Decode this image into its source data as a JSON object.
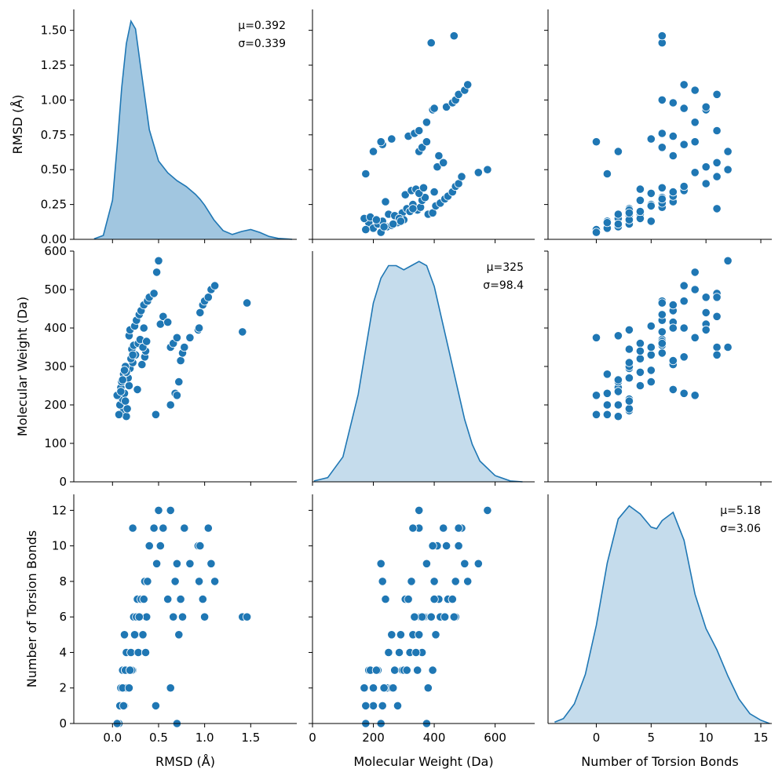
{
  "chart_data": {
    "type": "scatter",
    "title": "",
    "variables": [
      "RMSD (Å)",
      "Molecular Weight (Da)",
      "Number of Torsion Bonds"
    ],
    "colors": {
      "point": "#1f77b4",
      "point_edge": "#ffffff",
      "kde_fill": "#1f77b4",
      "kde_line": "#1f77b4",
      "axis": "#000000"
    },
    "axes": {
      "rmsd": {
        "label": "RMSD (Å)",
        "lim": [
          -0.42,
          2.0
        ],
        "ticks": [
          0.0,
          0.5,
          1.0,
          1.5
        ],
        "tick_labels": [
          "0.0",
          "0.5",
          "1.0",
          "1.5"
        ],
        "row_lim": [
          0.0,
          1.65
        ],
        "row_ticks": [
          0.0,
          0.25,
          0.5,
          0.75,
          1.0,
          1.25,
          1.5
        ],
        "row_tick_labels": [
          "0.00",
          "0.25",
          "0.50",
          "0.75",
          "1.00",
          "1.25",
          "1.50"
        ]
      },
      "mw": {
        "label": "Molecular Weight (Da)",
        "lim": [
          0,
          730
        ],
        "ticks": [
          0,
          200,
          400,
          600
        ],
        "tick_labels": [
          "0",
          "200",
          "400",
          "600"
        ],
        "row_lim": [
          0,
          600
        ],
        "row_ticks": [
          0,
          100,
          200,
          300,
          400,
          500,
          600
        ],
        "row_tick_labels": [
          "0",
          "100",
          "200",
          "300",
          "400",
          "500",
          "600"
        ]
      },
      "torsion": {
        "label": "Number of Torsion Bonds",
        "lim": [
          -4.4,
          16.0
        ],
        "ticks": [
          0,
          5,
          10,
          15
        ],
        "tick_labels": [
          "0",
          "5",
          "10",
          "15"
        ],
        "row_lim": [
          0,
          12.9
        ],
        "row_ticks": [
          0,
          2,
          4,
          6,
          8,
          10,
          12
        ],
        "row_tick_labels": [
          "0",
          "2",
          "4",
          "6",
          "8",
          "10",
          "12"
        ]
      }
    },
    "diagonal": [
      {
        "variable": "RMSD (Å)",
        "mu_label": "μ=0.392",
        "sigma_label": "σ=0.339",
        "kde_x": [
          -0.2,
          -0.1,
          0.0,
          0.05,
          0.1,
          0.15,
          0.2,
          0.25,
          0.3,
          0.4,
          0.5,
          0.6,
          0.7,
          0.8,
          0.9,
          0.95,
          1.0,
          1.1,
          1.2,
          1.3,
          1.4,
          1.5,
          1.6,
          1.7,
          1.8,
          1.9,
          1.95
        ],
        "kde_density": [
          0.005,
          0.04,
          0.4,
          0.95,
          1.55,
          2.0,
          2.23,
          2.15,
          1.8,
          1.12,
          0.8,
          0.68,
          0.6,
          0.54,
          0.46,
          0.41,
          0.35,
          0.2,
          0.09,
          0.05,
          0.08,
          0.1,
          0.07,
          0.03,
          0.01,
          0.003,
          0.0
        ],
        "density_max": 2.35
      },
      {
        "variable": "Molecular Weight (Da)",
        "mu_label": "μ=325",
        "sigma_label": "σ=98.4",
        "kde_x": [
          5,
          50,
          100,
          150,
          175,
          200,
          225,
          250,
          275,
          300,
          325,
          350,
          375,
          400,
          425,
          450,
          475,
          500,
          525,
          550,
          600,
          650,
          690
        ],
        "kde_density": [
          2e-05,
          0.0001,
          0.0006,
          0.0021,
          0.0032,
          0.0043,
          0.0049,
          0.0052,
          0.0052,
          0.0051,
          0.0052,
          0.0053,
          0.0052,
          0.0047,
          0.0039,
          0.0031,
          0.0023,
          0.0015,
          0.0009,
          0.0005,
          0.00015,
          2e-05,
          0.0
        ],
        "density_max": 0.00555
      },
      {
        "variable": "Number of Torsion Bonds",
        "mu_label": "μ=5.18",
        "sigma_label": "σ=3.06",
        "kde_x": [
          -3.8,
          -3.0,
          -2.0,
          -1.0,
          0.0,
          1.0,
          2.0,
          3.0,
          4.0,
          5.0,
          5.5,
          6.0,
          7.0,
          8.0,
          9.0,
          10.0,
          11.0,
          12.0,
          13.0,
          14.0,
          15.0,
          15.8
        ],
        "kde_density": [
          0.0008,
          0.003,
          0.012,
          0.03,
          0.06,
          0.098,
          0.125,
          0.133,
          0.128,
          0.12,
          0.119,
          0.124,
          0.129,
          0.112,
          0.079,
          0.058,
          0.045,
          0.029,
          0.015,
          0.006,
          0.002,
          0.0
        ],
        "density_max": 0.14
      }
    ],
    "samples": {
      "rmsd": [
        0.12,
        0.15,
        0.08,
        0.11,
        0.13,
        0.09,
        0.16,
        0.14,
        0.1,
        0.07,
        0.05,
        0.18,
        0.17,
        0.12,
        0.19,
        0.14,
        0.09,
        0.11,
        0.15,
        0.13,
        0.22,
        0.2,
        0.25,
        0.21,
        0.23,
        0.28,
        0.3,
        0.27,
        0.32,
        0.35,
        0.36,
        0.33,
        0.37,
        0.18,
        0.19,
        0.24,
        0.26,
        0.29,
        0.31,
        0.34,
        0.38,
        0.4,
        0.45,
        0.48,
        0.5,
        0.52,
        0.55,
        0.6,
        0.63,
        0.66,
        0.68,
        0.7,
        0.72,
        0.74,
        0.76,
        0.78,
        0.84,
        0.93,
        0.94,
        0.95,
        0.98,
        1.0,
        1.04,
        1.07,
        1.11,
        1.41,
        1.46,
        0.47,
        0.63,
        0.7,
        0.22,
        0.34
      ],
      "mw": [
        185,
        170,
        200,
        215,
        230,
        245,
        190,
        210,
        260,
        175,
        225,
        250,
        270,
        280,
        295,
        300,
        235,
        265,
        285,
        290,
        310,
        320,
        330,
        345,
        355,
        360,
        370,
        240,
        305,
        325,
        340,
        350,
        365,
        380,
        395,
        405,
        420,
        435,
        445,
        460,
        470,
        480,
        490,
        545,
        575,
        410,
        430,
        415,
        350,
        360,
        230,
        225,
        260,
        315,
        335,
        350,
        375,
        395,
        400,
        440,
        460,
        470,
        480,
        500,
        510,
        390,
        465,
        175,
        200,
        375,
        330,
        400
      ],
      "torsion": [
        3,
        2,
        1,
        3,
        1,
        2,
        3,
        3,
        2,
        0,
        0,
        4,
        3,
        1,
        3,
        3,
        2,
        2,
        4,
        5,
        3,
        4,
        5,
        3,
        6,
        4,
        6,
        7,
        7,
        8,
        4,
        5,
        6,
        2,
        3,
        5,
        6,
        6,
        7,
        7,
        8,
        10,
        11,
        9,
        12,
        10,
        11,
        7,
        12,
        6,
        8,
        9,
        5,
        7,
        6,
        11,
        9,
        10,
        8,
        10,
        7,
        6,
        11,
        9,
        8,
        6,
        6,
        1,
        2,
        0,
        11,
        7
      ]
    }
  }
}
